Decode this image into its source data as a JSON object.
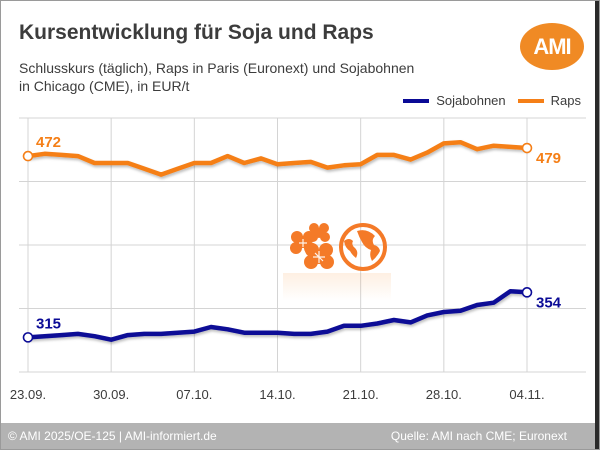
{
  "header": {
    "title": "Kursentwicklung für Soja und Raps",
    "subtitle_line1": "Schlusskurs (täglich), Raps in Paris (Euronext) und Sojabohnen",
    "subtitle_line2": "in Chicago (CME), in EUR/t",
    "logo_text": "AMI"
  },
  "colors": {
    "soja": "#0a0a96",
    "raps": "#f57f17",
    "logo": "#f08a24",
    "grid": "#d4d4d4",
    "footer_bg": "#b3b3b3",
    "text": "#3c3c3c"
  },
  "icons": [
    "flower-icon",
    "globe-icon"
  ],
  "footer": {
    "left": "© AMI 2025/OE-125 | AMI-informiert.de",
    "right": "Quelle: AMI nach CME; Euronext"
  },
  "chart_data": {
    "type": "line",
    "title": "Kursentwicklung für Soja und Raps",
    "subtitle": "Schlusskurs (täglich), Raps in Paris (Euronext) und Sojabohnen in Chicago (CME), in EUR/t",
    "xlabel": "",
    "ylabel": "EUR/t",
    "x_tick_labels": [
      "23.09.",
      "30.09.",
      "07.10.",
      "14.10.",
      "21.10.",
      "28.10.",
      "04.11."
    ],
    "points_per_week": 5,
    "ylim": [
      285,
      505
    ],
    "y_gridlines": [
      285,
      340,
      395,
      450,
      505
    ],
    "y_tick_labels_shown": false,
    "grid": true,
    "legend": {
      "position": "top-right",
      "entries": [
        "Sojabohnen",
        "Raps"
      ]
    },
    "series": [
      {
        "name": "Sojabohnen",
        "color": "#0a0a96",
        "values": [
          315,
          316,
          317,
          318,
          316,
          313,
          317,
          318,
          318,
          319,
          320,
          324,
          322,
          319,
          319,
          319,
          318,
          318,
          320,
          325,
          325,
          327,
          330,
          328,
          334,
          337,
          338,
          343,
          345,
          355,
          354
        ],
        "start_label": "315",
        "end_label": "354"
      },
      {
        "name": "Raps",
        "color": "#f57f17",
        "values": [
          472,
          474,
          473,
          472,
          466,
          466,
          466,
          461,
          456,
          461,
          466,
          466,
          472,
          466,
          470,
          465,
          466,
          467,
          462,
          464,
          465,
          473,
          473,
          469,
          475,
          483,
          484,
          478,
          481,
          480,
          479
        ],
        "start_label": "472",
        "end_label": "479"
      }
    ]
  }
}
